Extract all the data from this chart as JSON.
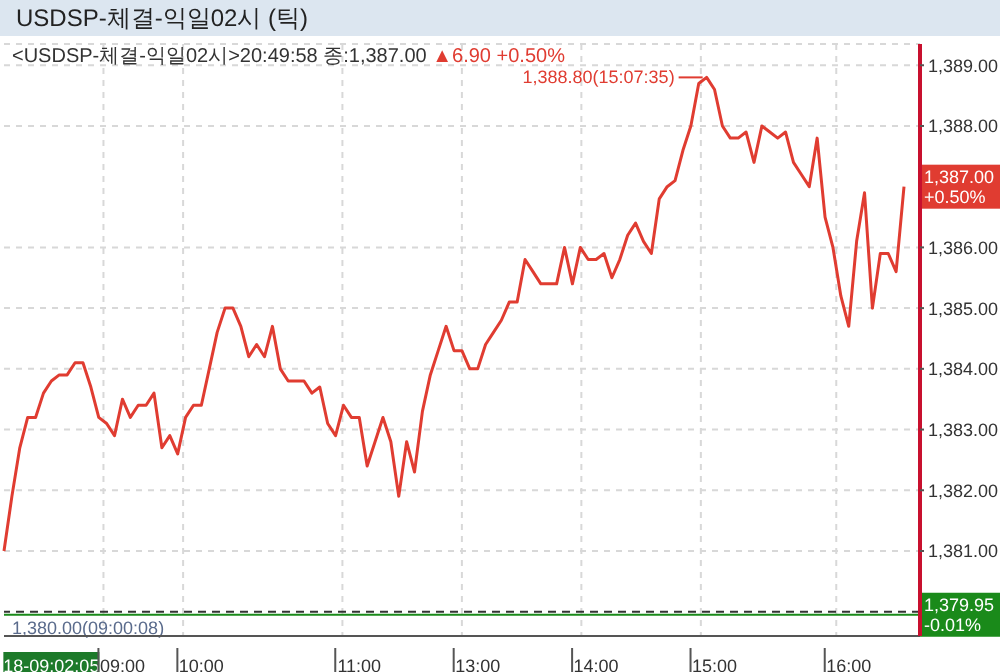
{
  "chart_data": {
    "type": "line",
    "title": "USDSP-체결-익일02시 (틱)",
    "subtitle": "<USDSP-체결-익일02시>20:49:58 종:1,387.00 ▲6.90 +0.50%",
    "categories": [
      null,
      null,
      null,
      null,
      null,
      null,
      "18-09:02:05",
      null,
      null,
      null,
      null,
      null,
      null,
      null,
      null,
      "09:00",
      null,
      null,
      null,
      null,
      null,
      null,
      null,
      null,
      null,
      "10:00",
      null,
      null,
      null,
      null,
      null,
      null,
      null,
      null,
      null,
      null,
      null,
      null,
      null,
      null,
      null,
      null,
      null,
      null,
      null,
      "11:00",
      null,
      null,
      null,
      null,
      null,
      null,
      null,
      null,
      null,
      null,
      null,
      null,
      null,
      null,
      "13:00",
      null,
      null,
      null,
      null,
      null,
      null,
      null,
      null,
      null,
      null,
      null,
      null,
      null,
      null,
      "14:00",
      null,
      null,
      null,
      null,
      null,
      null,
      null,
      null,
      null,
      null,
      null,
      null,
      null,
      null,
      "15:00",
      null,
      null,
      null,
      null,
      null,
      null,
      null,
      null,
      null,
      null,
      null,
      null,
      null,
      null,
      null,
      null,
      "16:00",
      null,
      null,
      null,
      null,
      null,
      null,
      null
    ],
    "values": [
      1381.0,
      1381.9,
      1382.7,
      1383.2,
      1383.2,
      1383.6,
      1383.8,
      1383.9,
      1383.9,
      1384.1,
      1384.1,
      1383.7,
      1383.2,
      1383.1,
      1382.9,
      1383.5,
      1383.2,
      1383.4,
      1383.4,
      1383.6,
      1382.7,
      1382.9,
      1382.6,
      1383.2,
      1383.4,
      1383.4,
      1384.0,
      1384.6,
      1385.0,
      1385.0,
      1384.7,
      1384.2,
      1384.4,
      1384.2,
      1384.7,
      1384.0,
      1383.8,
      1383.8,
      1383.8,
      1383.6,
      1383.7,
      1383.1,
      1382.9,
      1383.4,
      1383.2,
      1383.2,
      1382.4,
      1382.8,
      1383.2,
      1382.8,
      1381.9,
      1382.8,
      1382.3,
      1383.3,
      1383.9,
      1384.3,
      1384.7,
      1384.3,
      1384.3,
      1384.0,
      1384.0,
      1384.4,
      1384.6,
      1384.8,
      1385.1,
      1385.1,
      1385.8,
      1385.6,
      1385.4,
      1385.4,
      1385.4,
      1386.0,
      1385.4,
      1386.0,
      1385.8,
      1385.8,
      1385.9,
      1385.5,
      1385.8,
      1386.2,
      1386.4,
      1386.1,
      1385.9,
      1386.8,
      1387.0,
      1387.1,
      1387.6,
      1388.0,
      1388.7,
      1388.8,
      1388.6,
      1388.0,
      1387.8,
      1387.8,
      1387.9,
      1387.4,
      1388.0,
      1387.9,
      1387.8,
      1387.9,
      1387.4,
      1387.2,
      1387.0,
      1387.8,
      1386.5,
      1386.0,
      1385.2,
      1384.7,
      1386.1,
      1386.9,
      1385.0,
      1385.9,
      1385.9,
      1385.6,
      1387.0
    ],
    "color": "#e03c31",
    "ylim": [
      1379.6,
      1389.35
    ],
    "yticks": [
      {
        "value": 1381,
        "label": "1,381.00"
      },
      {
        "value": 1382,
        "label": "1,382.00"
      },
      {
        "value": 1383,
        "label": "1,383.00"
      },
      {
        "value": 1384,
        "label": "1,384.00"
      },
      {
        "value": 1385,
        "label": "1,385.00"
      },
      {
        "value": 1386,
        "label": "1,386.00"
      },
      {
        "value": 1388,
        "label": "1,388.00"
      },
      {
        "value": 1389,
        "label": "1,389.00"
      }
    ],
    "grid": true,
    "ref_lines": [
      {
        "axis": "y",
        "value": 1380.0,
        "label": "1,380.00(09:00:08)",
        "color": "#333333",
        "line_style": "dashed"
      },
      {
        "axis": "y",
        "value": 1379.95,
        "label": "1,379.95\n-0.01%",
        "color": "#1a8a1a",
        "line_style": "solid"
      }
    ],
    "annotations": [
      "1,388.80(15:07:35)",
      {
        "text": "1,387.00\n+0.50%",
        "y": 1387.0
      }
    ]
  }
}
